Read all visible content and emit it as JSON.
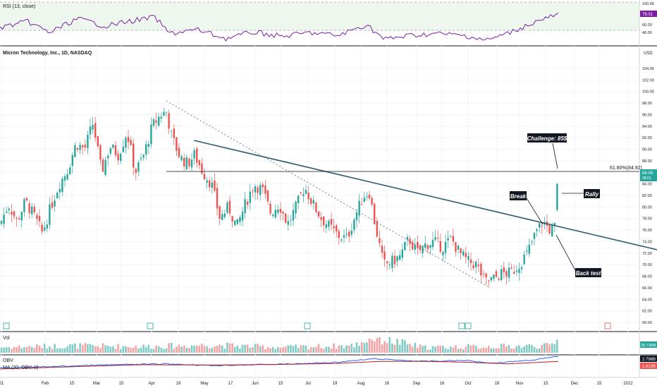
{
  "panels": {
    "rsi_title": "RSI (13, close)",
    "main_title": "Micron Technology, Inc., 1D, NASDAQ",
    "vol_title": "Vol",
    "obv_title": "OBV",
    "ma_title": "MA (30, OBV, 0)",
    "currency": "USD"
  },
  "annotations": {
    "challenge": "Challenge: 85$",
    "rally": "Rally",
    "break": "Break",
    "back_test": "Back test",
    "fib": "61.80%(84.92)"
  },
  "badges": {
    "rsi_value": "79.01",
    "price_value": "84.09",
    "price_time": "38:01",
    "vol_value": "28.735M",
    "obv_value": "2.796B",
    "ma_value": "1.613B"
  },
  "colors": {
    "up": "#26a69a",
    "down": "#ef5350",
    "up_vol": "#80cbc4",
    "down_vol": "#f5a3a2",
    "rsi_line": "#7b1fa2",
    "rsi_band": "#e8f5e9",
    "trendline": "#2f5d6e",
    "obv_line": "#2962ff",
    "ma_line": "#b71c1c",
    "badge_green": "#26a69a",
    "label_bg": "#131722"
  },
  "rsi_axis": {
    "ticks": [
      "100.00",
      "60.00",
      "40.00"
    ]
  },
  "x_axis": {
    "labels": [
      "21",
      "Feb",
      "15",
      "Mar",
      "15",
      "Apr",
      "19",
      "May",
      "17",
      "Jun",
      "15",
      "Jul",
      "19",
      "Aug",
      "16",
      "Sep",
      "16",
      "Oct",
      "18",
      "Nov",
      "15",
      "Dec",
      "15",
      "2022"
    ]
  },
  "chart_data": {
    "type": "candlestick",
    "title": "Micron Technology, Inc., 1D, NASDAQ",
    "y_axis_ticks": [
      "104.00",
      "102.00",
      "100.00",
      "98.00",
      "96.00",
      "94.00",
      "92.00",
      "90.00",
      "88.00",
      "86.00",
      "84.00",
      "82.00",
      "80.00",
      "78.00",
      "76.00",
      "74.00",
      "72.00",
      "70.00",
      "68.00",
      "66.00",
      "64.00",
      "62.00",
      "60.00"
    ],
    "ylim": [
      59,
      106
    ],
    "close_path": [
      [
        0,
        77
      ],
      [
        12,
        80.5
      ],
      [
        24,
        77.5
      ],
      [
        36,
        81
      ],
      [
        48,
        78.5
      ],
      [
        60,
        75.5
      ],
      [
        72,
        80
      ],
      [
        84,
        84
      ],
      [
        96,
        86.5
      ],
      [
        108,
        91
      ],
      [
        120,
        90
      ],
      [
        132,
        94.5
      ],
      [
        144,
        86
      ],
      [
        156,
        90.5
      ],
      [
        168,
        89
      ],
      [
        180,
        93
      ],
      [
        192,
        86
      ],
      [
        204,
        89
      ],
      [
        216,
        94
      ],
      [
        228,
        96
      ],
      [
        236,
        96.5
      ],
      [
        244,
        92
      ],
      [
        256,
        88.5
      ],
      [
        266,
        87.5
      ],
      [
        276,
        89
      ],
      [
        288,
        86
      ],
      [
        300,
        84
      ],
      [
        312,
        78
      ],
      [
        324,
        80
      ],
      [
        336,
        76.5
      ],
      [
        348,
        80.5
      ],
      [
        360,
        84
      ],
      [
        372,
        83
      ],
      [
        384,
        79
      ],
      [
        396,
        80.5
      ],
      [
        408,
        77
      ],
      [
        420,
        80
      ],
      [
        432,
        83.5
      ],
      [
        444,
        80.5
      ],
      [
        456,
        78
      ],
      [
        468,
        76.5
      ],
      [
        480,
        75
      ],
      [
        492,
        74.5
      ],
      [
        504,
        78.5
      ],
      [
        516,
        82
      ],
      [
        524,
        82.5
      ],
      [
        532,
        77
      ],
      [
        544,
        70
      ],
      [
        556,
        70.5
      ],
      [
        568,
        71.5
      ],
      [
        580,
        74.5
      ],
      [
        592,
        72
      ],
      [
        604,
        73.5
      ],
      [
        616,
        74
      ],
      [
        628,
        73
      ],
      [
        640,
        74.5
      ],
      [
        652,
        72
      ],
      [
        664,
        70.5
      ],
      [
        676,
        70
      ],
      [
        688,
        67
      ],
      [
        700,
        67.5
      ],
      [
        712,
        68.5
      ],
      [
        724,
        68.5
      ],
      [
        736,
        70
      ],
      [
        748,
        72
      ],
      [
        760,
        75.5
      ],
      [
        770,
        77.5
      ],
      [
        780,
        76
      ],
      [
        788,
        76.5
      ],
      [
        794,
        84
      ]
    ],
    "volume_path": [
      [
        0,
        0.35
      ],
      [
        100,
        0.45
      ],
      [
        200,
        0.4
      ],
      [
        300,
        0.5
      ],
      [
        400,
        0.35
      ],
      [
        500,
        0.45
      ],
      [
        530,
        1.0
      ],
      [
        600,
        0.35
      ],
      [
        700,
        0.4
      ],
      [
        780,
        0.45
      ],
      [
        794,
        0.9
      ]
    ],
    "rsi_path": [
      [
        0,
        0.55
      ],
      [
        40,
        0.35
      ],
      [
        70,
        0.72
      ],
      [
        110,
        0.25
      ],
      [
        150,
        0.5
      ],
      [
        180,
        0.35
      ],
      [
        220,
        0.2
      ],
      [
        240,
        0.75
      ],
      [
        280,
        0.62
      ],
      [
        320,
        0.92
      ],
      [
        360,
        0.7
      ],
      [
        400,
        0.85
      ],
      [
        440,
        0.72
      ],
      [
        480,
        0.82
      ],
      [
        520,
        0.45
      ],
      [
        545,
        0.95
      ],
      [
        580,
        0.82
      ],
      [
        620,
        0.75
      ],
      [
        660,
        0.82
      ],
      [
        690,
        0.98
      ],
      [
        720,
        0.75
      ],
      [
        760,
        0.35
      ],
      [
        790,
        0.12
      ]
    ],
    "obv_path": [
      [
        0,
        0.7
      ],
      [
        80,
        0.6
      ],
      [
        160,
        0.5
      ],
      [
        240,
        0.45
      ],
      [
        300,
        0.55
      ],
      [
        360,
        0.5
      ],
      [
        420,
        0.45
      ],
      [
        480,
        0.35
      ],
      [
        530,
        0.15
      ],
      [
        600,
        0.3
      ],
      [
        660,
        0.25
      ],
      [
        700,
        0.4
      ],
      [
        760,
        0.2
      ],
      [
        794,
        0.0
      ]
    ],
    "ma_path": [
      [
        0,
        0.75
      ],
      [
        100,
        0.62
      ],
      [
        200,
        0.5
      ],
      [
        300,
        0.52
      ],
      [
        400,
        0.48
      ],
      [
        480,
        0.42
      ],
      [
        540,
        0.3
      ],
      [
        600,
        0.3
      ],
      [
        660,
        0.35
      ],
      [
        720,
        0.45
      ],
      [
        794,
        0.3
      ]
    ]
  }
}
